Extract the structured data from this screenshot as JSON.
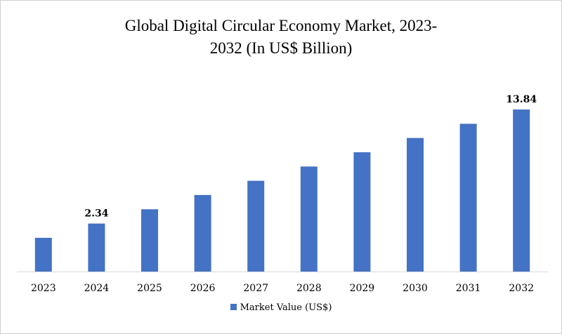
{
  "chart_data": {
    "type": "bar",
    "title": "Global Digital Circular Economy Market, 2023-2032 (In US$ Billion)",
    "title_lines": [
      "Global Digital Circular Economy Market, 2023-",
      "2032 (In US$ Billion)"
    ],
    "categories": [
      "2023",
      "2024",
      "2025",
      "2026",
      "2027",
      "2028",
      "2029",
      "2030",
      "2031",
      "2032"
    ],
    "series": [
      {
        "name": "Market Value (US$)",
        "color": "#4472C4",
        "values": [
          0.9,
          2.34,
          3.78,
          5.22,
          6.65,
          8.09,
          9.53,
          10.97,
          12.4,
          13.84
        ]
      }
    ],
    "data_labels": [
      {
        "category": "2024",
        "text": "2.34"
      },
      {
        "category": "2032",
        "text": "13.84"
      }
    ],
    "xlabel": "",
    "ylabel": "",
    "ylim": [
      -2.5,
      15.4
    ],
    "grid": false,
    "legend_position": "bottom"
  }
}
